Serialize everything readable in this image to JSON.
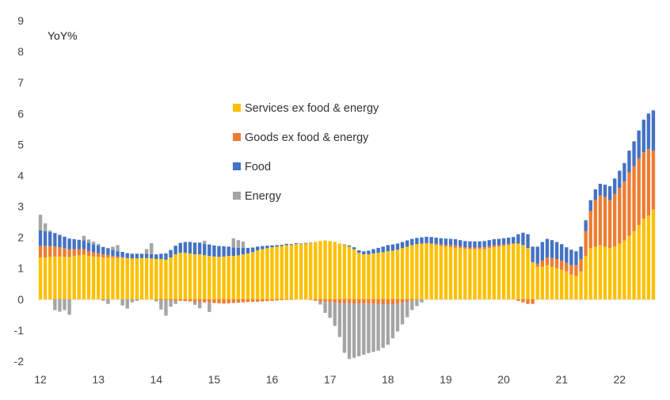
{
  "chart_data": {
    "type": "bar",
    "stacked": true,
    "ylabel": "YoY%",
    "ylim": [
      -2,
      9
    ],
    "y_ticks": [
      "-2",
      "-1",
      "0",
      "1",
      "2",
      "3",
      "4",
      "5",
      "6",
      "7",
      "8",
      "9"
    ],
    "x_ticks": [
      "12",
      "13",
      "14",
      "15",
      "16",
      "17",
      "18",
      "19",
      "20",
      "21",
      "22"
    ],
    "x_start": "2012-01",
    "x_end": "2022-04",
    "frequency": "monthly",
    "grid": false,
    "legend_position": "upper-center",
    "series": [
      {
        "name": "Services ex food & energy",
        "color": "#FFC000",
        "values": [
          1.35,
          1.35,
          1.37,
          1.38,
          1.38,
          1.37,
          1.36,
          1.4,
          1.42,
          1.44,
          1.4,
          1.38,
          1.37,
          1.35,
          1.35,
          1.34,
          1.33,
          1.34,
          1.33,
          1.32,
          1.32,
          1.33,
          1.33,
          1.32,
          1.3,
          1.3,
          1.28,
          1.35,
          1.45,
          1.5,
          1.5,
          1.48,
          1.45,
          1.45,
          1.42,
          1.4,
          1.38,
          1.37,
          1.38,
          1.4,
          1.4,
          1.42,
          1.45,
          1.48,
          1.52,
          1.58,
          1.62,
          1.65,
          1.68,
          1.7,
          1.72,
          1.75,
          1.75,
          1.78,
          1.78,
          1.8,
          1.82,
          1.85,
          1.88,
          1.9,
          1.88,
          1.85,
          1.8,
          1.75,
          1.7,
          1.62,
          1.5,
          1.45,
          1.45,
          1.48,
          1.5,
          1.52,
          1.55,
          1.57,
          1.6,
          1.65,
          1.7,
          1.75,
          1.78,
          1.8,
          1.8,
          1.78,
          1.75,
          1.72,
          1.7,
          1.68,
          1.66,
          1.65,
          1.63,
          1.62,
          1.62,
          1.62,
          1.62,
          1.65,
          1.68,
          1.7,
          1.72,
          1.75,
          1.78,
          1.8,
          1.75,
          1.65,
          1.2,
          1.05,
          1.05,
          1.1,
          1.05,
          1.0,
          0.95,
          0.9,
          0.8,
          0.75,
          0.9,
          1.4,
          1.65,
          1.7,
          1.75,
          1.7,
          1.65,
          1.7,
          1.8,
          1.9,
          2.05,
          2.2,
          2.4,
          2.6,
          2.7,
          2.9
        ]
      },
      {
        "name": "Goods ex food & energy",
        "color": "#ED7D31",
        "values": [
          0.38,
          0.37,
          0.35,
          0.33,
          0.3,
          0.28,
          0.25,
          0.22,
          0.2,
          0.18,
          0.16,
          0.14,
          0.12,
          0.1,
          0.08,
          0.06,
          0.04,
          0.02,
          0.0,
          0.0,
          0.0,
          0.0,
          0.0,
          0.0,
          -0.02,
          -0.03,
          -0.03,
          -0.04,
          -0.05,
          -0.05,
          -0.06,
          -0.07,
          -0.08,
          -0.09,
          -0.1,
          -0.11,
          -0.12,
          -0.13,
          -0.14,
          -0.13,
          -0.12,
          -0.11,
          -0.1,
          -0.09,
          -0.08,
          -0.08,
          -0.07,
          -0.06,
          -0.05,
          -0.04,
          -0.03,
          -0.02,
          -0.01,
          0.0,
          0.0,
          0.0,
          -0.02,
          -0.05,
          -0.07,
          -0.09,
          -0.1,
          -0.11,
          -0.12,
          -0.13,
          -0.13,
          -0.14,
          -0.14,
          -0.14,
          -0.14,
          -0.15,
          -0.16,
          -0.17,
          -0.17,
          -0.16,
          -0.14,
          -0.11,
          -0.08,
          -0.05,
          -0.02,
          0.0,
          0.02,
          0.03,
          0.04,
          0.05,
          0.06,
          0.07,
          0.08,
          0.06,
          0.05,
          0.05,
          0.05,
          0.05,
          0.06,
          0.06,
          0.06,
          0.05,
          0.05,
          0.04,
          0.03,
          -0.05,
          -0.1,
          -0.15,
          -0.15,
          0.1,
          0.2,
          0.25,
          0.28,
          0.3,
          0.3,
          0.28,
          0.3,
          0.35,
          0.4,
          0.8,
          1.2,
          1.5,
          1.6,
          1.6,
          1.55,
          1.7,
          1.8,
          1.9,
          2.05,
          2.1,
          2.15,
          2.15,
          2.15,
          1.9
        ]
      },
      {
        "name": "Food",
        "color": "#4472C4",
        "values": [
          0.5,
          0.48,
          0.45,
          0.43,
          0.4,
          0.37,
          0.35,
          0.32,
          0.3,
          0.28,
          0.27,
          0.26,
          0.25,
          0.24,
          0.22,
          0.2,
          0.18,
          0.17,
          0.16,
          0.15,
          0.15,
          0.14,
          0.14,
          0.14,
          0.15,
          0.17,
          0.2,
          0.24,
          0.28,
          0.32,
          0.35,
          0.37,
          0.38,
          0.38,
          0.37,
          0.37,
          0.36,
          0.35,
          0.33,
          0.3,
          0.27,
          0.24,
          0.21,
          0.18,
          0.15,
          0.12,
          0.1,
          0.08,
          0.06,
          0.05,
          0.04,
          0.04,
          0.03,
          0.03,
          0.02,
          0.02,
          0.01,
          0.0,
          0.0,
          0.0,
          0.0,
          0.0,
          0.0,
          0.02,
          0.04,
          0.06,
          0.08,
          0.1,
          0.12,
          0.14,
          0.16,
          0.18,
          0.2,
          0.2,
          0.2,
          0.2,
          0.2,
          0.2,
          0.2,
          0.2,
          0.2,
          0.2,
          0.2,
          0.2,
          0.2,
          0.2,
          0.2,
          0.2,
          0.2,
          0.2,
          0.2,
          0.2,
          0.2,
          0.2,
          0.2,
          0.2,
          0.2,
          0.2,
          0.2,
          0.3,
          0.4,
          0.45,
          0.5,
          0.55,
          0.6,
          0.6,
          0.58,
          0.55,
          0.53,
          0.5,
          0.5,
          0.45,
          0.4,
          0.35,
          0.35,
          0.35,
          0.38,
          0.4,
          0.45,
          0.5,
          0.55,
          0.6,
          0.7,
          0.8,
          0.9,
          1.05,
          1.15,
          1.3
        ]
      },
      {
        "name": "Energy",
        "color": "#A5A5A5",
        "values": [
          0.5,
          0.25,
          0.05,
          -0.35,
          -0.4,
          -0.35,
          -0.5,
          0.0,
          0.0,
          0.15,
          0.1,
          0.08,
          0.05,
          -0.05,
          -0.15,
          0.1,
          0.2,
          -0.2,
          -0.3,
          -0.1,
          -0.05,
          0.0,
          0.15,
          0.35,
          -0.05,
          -0.3,
          -0.5,
          -0.2,
          -0.1,
          0.0,
          0.0,
          0.0,
          -0.1,
          -0.2,
          0.1,
          -0.3,
          0.0,
          0.0,
          0.0,
          0.0,
          0.3,
          0.25,
          0.2,
          0.0,
          0.0,
          0.0,
          0.0,
          0.0,
          0.0,
          0.0,
          0.0,
          0.0,
          0.0,
          0.0,
          0.0,
          0.0,
          0.0,
          0.0,
          -0.1,
          -0.35,
          -0.5,
          -0.75,
          -1.1,
          -1.6,
          -1.8,
          -1.75,
          -1.7,
          -1.65,
          -1.6,
          -1.55,
          -1.5,
          -1.4,
          -1.3,
          -1.1,
          -0.9,
          -0.7,
          -0.5,
          -0.3,
          -0.2,
          -0.1,
          0.0,
          0.0,
          0.0,
          0.0,
          0.0,
          0.0,
          0.0,
          0.0,
          0.0,
          0.0,
          0.0,
          0.0,
          0.0,
          0.0,
          0.0,
          0.0,
          0.0,
          0.0,
          0.0,
          0.0,
          0.0,
          0.0,
          0.0,
          0.0,
          0.0,
          0.0,
          0.0,
          0.0,
          0.0,
          0.0,
          0.0,
          0.0,
          0.0,
          0.0,
          0.0,
          0.0,
          0.0,
          0.0,
          0.0,
          0.0,
          0.0,
          0.0,
          0.0,
          0.0,
          0.0,
          0.0,
          0.0,
          0.0
        ]
      }
    ]
  }
}
